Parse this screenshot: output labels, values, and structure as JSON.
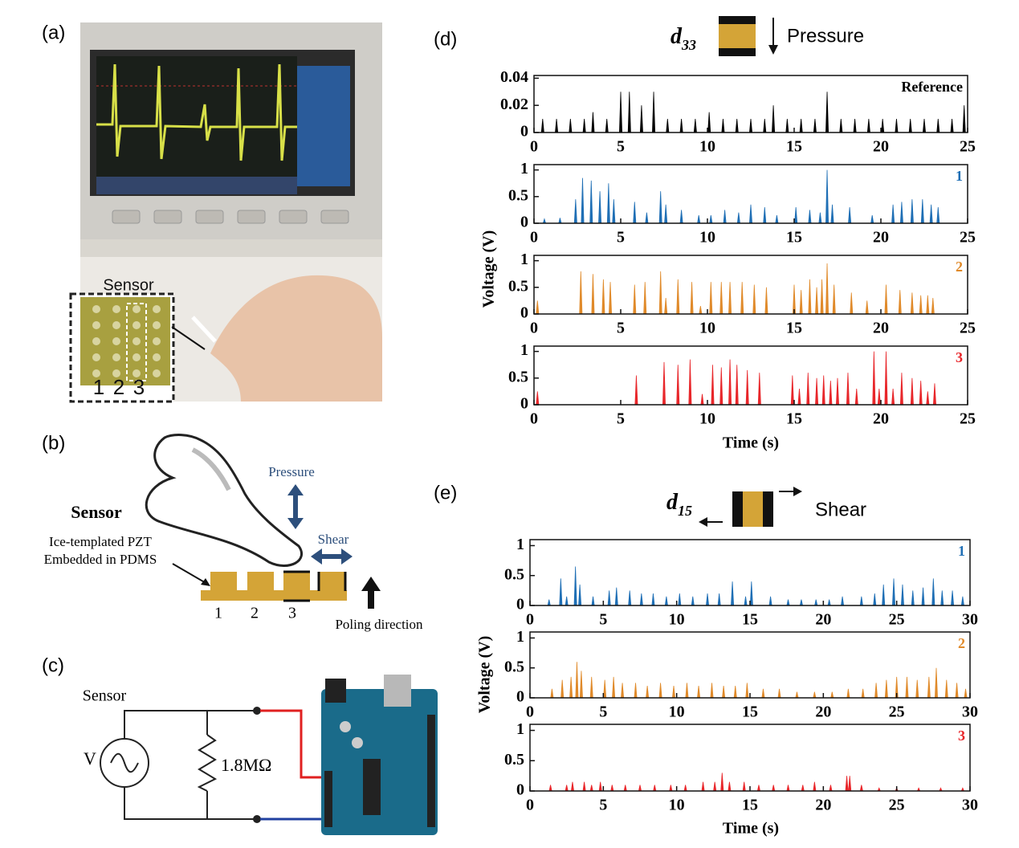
{
  "labels": {
    "a": "(a)",
    "b": "(b)",
    "c": "(c)",
    "d": "(d)",
    "e": "(e)"
  },
  "photo": {
    "sensor_label": "Sensor",
    "columns": [
      "1",
      "2",
      "3"
    ]
  },
  "diagram_b": {
    "sensor": "Sensor",
    "material_line1": "Ice-templated PZT",
    "material_line2": "Embedded in PDMS",
    "pressure": "Pressure",
    "shear": "Shear",
    "poling": "Poling direction",
    "columns": [
      "1",
      "2",
      "3"
    ]
  },
  "circuit_c": {
    "sensor": "Sensor",
    "source": "V",
    "resistor": "1.8MΩ"
  },
  "panel_d": {
    "mode": "d",
    "mode_sub": "33",
    "force": "Pressure",
    "ylabel": "Voltage (V)",
    "xlabel": "Time (s)"
  },
  "panel_e": {
    "mode": "d",
    "mode_sub": "15",
    "force": "Shear",
    "ylabel": "Voltage (V)",
    "xlabel": "Time (s)"
  },
  "chart_data": [
    {
      "type": "line",
      "xlim": [
        0,
        25
      ],
      "xticks": [
        0,
        5,
        10,
        15,
        20,
        25
      ],
      "ylim": [
        0,
        0.042
      ],
      "yticks": [
        0,
        0.02,
        0.04
      ],
      "series": [
        {
          "name": "Reference",
          "color": "#000000",
          "x": [
            0.5,
            1.3,
            2.1,
            2.9,
            3.4,
            4.2,
            5.0,
            5.5,
            6.2,
            6.9,
            7.7,
            8.5,
            9.3,
            10.1,
            10.9,
            11.7,
            12.5,
            13.3,
            13.8,
            14.6,
            15.4,
            16.2,
            16.9,
            17.7,
            18.5,
            19.3,
            20.1,
            20.9,
            21.7,
            22.5,
            23.3,
            24.1,
            24.8
          ],
          "values": [
            0.01,
            0.01,
            0.01,
            0.01,
            0.015,
            0.01,
            0.03,
            0.03,
            0.02,
            0.03,
            0.01,
            0.01,
            0.01,
            0.015,
            0.01,
            0.01,
            0.01,
            0.01,
            0.02,
            0.01,
            0.01,
            0.01,
            0.03,
            0.01,
            0.01,
            0.01,
            0.01,
            0.01,
            0.01,
            0.01,
            0.01,
            0.01,
            0.02
          ]
        }
      ]
    },
    {
      "type": "line",
      "xlim": [
        0,
        25
      ],
      "xticks": [
        0,
        5,
        10,
        15,
        20,
        25
      ],
      "ylim": [
        0,
        1.1
      ],
      "yticks": [
        0,
        0.5,
        1
      ],
      "series": [
        {
          "name": "1",
          "color": "#1f6fb5",
          "x": [
            0.6,
            1.5,
            2.4,
            2.8,
            3.3,
            3.8,
            4.3,
            4.6,
            5.8,
            6.5,
            7.3,
            7.6,
            8.5,
            9.5,
            10.2,
            11.0,
            11.8,
            12.5,
            13.3,
            14.0,
            15.1,
            15.9,
            16.5,
            16.9,
            17.2,
            18.2,
            19.5,
            20.7,
            21.2,
            21.8,
            22.4,
            22.9,
            23.3
          ],
          "values": [
            0.08,
            0.1,
            0.45,
            0.85,
            0.8,
            0.6,
            0.75,
            0.45,
            0.4,
            0.2,
            0.6,
            0.35,
            0.25,
            0.15,
            0.15,
            0.25,
            0.2,
            0.35,
            0.3,
            0.15,
            0.3,
            0.25,
            0.2,
            1.0,
            0.35,
            0.3,
            0.15,
            0.35,
            0.4,
            0.45,
            0.45,
            0.35,
            0.3
          ]
        }
      ]
    },
    {
      "type": "line",
      "xlim": [
        0,
        25
      ],
      "xticks": [
        0,
        5,
        10,
        15,
        20,
        25
      ],
      "ylim": [
        0,
        1.1
      ],
      "yticks": [
        0,
        0.5,
        1
      ],
      "series": [
        {
          "name": "2",
          "color": "#e08a2a",
          "x": [
            0.2,
            2.7,
            3.4,
            4.0,
            4.4,
            5.8,
            6.4,
            7.3,
            7.6,
            8.3,
            9.1,
            9.6,
            10.2,
            10.8,
            11.3,
            12.0,
            12.7,
            13.4,
            15.0,
            15.4,
            15.9,
            16.3,
            16.6,
            16.9,
            17.3,
            18.3,
            19.2,
            20.3,
            21.1,
            21.8,
            22.3,
            22.7,
            23.0
          ],
          "values": [
            0.25,
            0.8,
            0.75,
            0.65,
            0.6,
            0.55,
            0.6,
            0.8,
            0.3,
            0.65,
            0.6,
            0.15,
            0.6,
            0.6,
            0.6,
            0.6,
            0.55,
            0.5,
            0.55,
            0.45,
            0.65,
            0.5,
            0.65,
            0.95,
            0.55,
            0.4,
            0.25,
            0.55,
            0.45,
            0.4,
            0.35,
            0.35,
            0.3
          ]
        }
      ]
    },
    {
      "type": "line",
      "xlim": [
        0,
        25
      ],
      "xticks": [
        0,
        5,
        10,
        15,
        20,
        25
      ],
      "ylim": [
        0,
        1.1
      ],
      "yticks": [
        0,
        0.5,
        1
      ],
      "series": [
        {
          "name": "3",
          "color": "#e8262a",
          "x": [
            0.2,
            5.9,
            7.5,
            8.3,
            9.0,
            9.7,
            10.3,
            10.8,
            11.3,
            11.7,
            12.3,
            13.0,
            14.9,
            15.3,
            15.8,
            16.3,
            16.7,
            17.1,
            17.5,
            18.1,
            18.6,
            19.6,
            19.9,
            20.3,
            20.7,
            21.2,
            21.8,
            22.3,
            22.7,
            23.1
          ],
          "values": [
            0.25,
            0.55,
            0.8,
            0.75,
            0.85,
            0.2,
            0.75,
            0.7,
            0.85,
            0.75,
            0.65,
            0.6,
            0.55,
            0.3,
            0.6,
            0.5,
            0.55,
            0.45,
            0.5,
            0.6,
            0.3,
            1.0,
            0.3,
            1.0,
            0.3,
            0.6,
            0.5,
            0.45,
            0.25,
            0.4
          ]
        }
      ]
    },
    {
      "type": "line",
      "xlim": [
        0,
        30
      ],
      "xticks": [
        0,
        5,
        10,
        15,
        20,
        25,
        30
      ],
      "ylim": [
        0,
        1.1
      ],
      "yticks": [
        0,
        0.5,
        1
      ],
      "series": [
        {
          "name": "1",
          "color": "#1f6fb5",
          "x": [
            1.3,
            2.1,
            2.5,
            3.1,
            3.4,
            4.3,
            5.4,
            5.9,
            6.8,
            7.6,
            8.4,
            9.3,
            10.2,
            11.1,
            12.1,
            12.9,
            13.8,
            14.7,
            15.1,
            16.4,
            17.6,
            18.5,
            19.5,
            20.4,
            21.3,
            22.6,
            23.5,
            24.1,
            24.8,
            25.4,
            26.1,
            26.8,
            27.5,
            28.1,
            28.8,
            29.5
          ],
          "values": [
            0.1,
            0.45,
            0.15,
            0.65,
            0.35,
            0.15,
            0.25,
            0.3,
            0.25,
            0.2,
            0.2,
            0.15,
            0.2,
            0.15,
            0.2,
            0.2,
            0.4,
            0.15,
            0.4,
            0.15,
            0.1,
            0.1,
            0.1,
            0.1,
            0.15,
            0.15,
            0.2,
            0.35,
            0.45,
            0.35,
            0.25,
            0.3,
            0.45,
            0.25,
            0.25,
            0.15
          ]
        }
      ]
    },
    {
      "type": "line",
      "xlim": [
        0,
        30
      ],
      "xticks": [
        0,
        5,
        10,
        15,
        20,
        25,
        30
      ],
      "ylim": [
        0,
        1.1
      ],
      "yticks": [
        0,
        0.5,
        1
      ],
      "series": [
        {
          "name": "2",
          "color": "#e08a2a",
          "x": [
            1.5,
            2.2,
            2.8,
            3.2,
            3.5,
            4.2,
            5.1,
            5.7,
            6.3,
            7.2,
            8.0,
            8.9,
            9.8,
            10.7,
            11.5,
            12.4,
            13.2,
            14.0,
            14.8,
            15.9,
            17.0,
            18.2,
            19.4,
            20.6,
            21.7,
            22.7,
            23.6,
            24.3,
            25.0,
            25.7,
            26.4,
            27.2,
            27.7,
            28.4,
            29.1,
            29.7
          ],
          "values": [
            0.15,
            0.3,
            0.35,
            0.6,
            0.45,
            0.35,
            0.3,
            0.35,
            0.25,
            0.25,
            0.2,
            0.25,
            0.2,
            0.25,
            0.2,
            0.25,
            0.2,
            0.2,
            0.25,
            0.15,
            0.15,
            0.1,
            0.1,
            0.1,
            0.15,
            0.15,
            0.25,
            0.3,
            0.35,
            0.35,
            0.3,
            0.35,
            0.5,
            0.3,
            0.25,
            0.15
          ]
        }
      ]
    },
    {
      "type": "line",
      "xlim": [
        0,
        30
      ],
      "xticks": [
        0,
        5,
        10,
        15,
        20,
        25,
        30
      ],
      "ylim": [
        0,
        1.1
      ],
      "yticks": [
        0,
        0.5,
        1
      ],
      "series": [
        {
          "name": "3",
          "color": "#e8262a",
          "x": [
            1.4,
            2.5,
            2.9,
            3.7,
            4.2,
            4.8,
            5.6,
            6.5,
            7.5,
            8.5,
            9.6,
            10.6,
            11.8,
            12.6,
            13.1,
            13.6,
            14.6,
            15.6,
            16.6,
            17.6,
            18.6,
            19.4,
            20.5,
            21.6,
            21.8,
            22.6,
            23.8,
            25.0,
            26.5,
            28.0,
            29.5
          ],
          "values": [
            0.1,
            0.1,
            0.15,
            0.15,
            0.1,
            0.15,
            0.1,
            0.1,
            0.1,
            0.1,
            0.1,
            0.1,
            0.15,
            0.15,
            0.3,
            0.15,
            0.15,
            0.1,
            0.1,
            0.1,
            0.1,
            0.15,
            0.1,
            0.25,
            0.25,
            0.1,
            0.05,
            0.05,
            0.05,
            0.05,
            0.05
          ]
        }
      ]
    }
  ]
}
